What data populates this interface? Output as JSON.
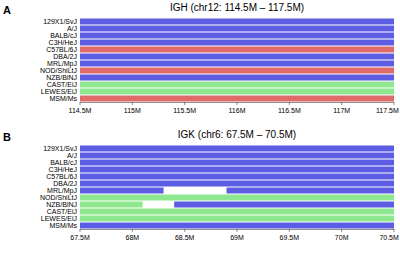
{
  "chart_data": [
    {
      "type": "range",
      "orientation": "horizontal",
      "label": "A",
      "title": "IGH (chr12: 114.5M – 117.5M)",
      "categories": [
        "129X1/SvJ",
        "A/J",
        "BALB/cJ",
        "C3H/HeJ",
        "C57BL/6J",
        "DBA/2J",
        "MRL/MpJ",
        "NOD/ShiLtJ",
        "NZB/BlNJ",
        "CAST/EiJ",
        "LEWES/EiJ",
        "MSM/Ms"
      ],
      "segments": [
        [
          {
            "start": 114.5,
            "end": 117.5,
            "color": "#5d5de3"
          }
        ],
        [
          {
            "start": 114.5,
            "end": 117.5,
            "color": "#5d5de3"
          }
        ],
        [
          {
            "start": 114.5,
            "end": 117.5,
            "color": "#5d5de3"
          }
        ],
        [
          {
            "start": 114.5,
            "end": 117.5,
            "color": "#5d5de3"
          }
        ],
        [
          {
            "start": 114.5,
            "end": 117.5,
            "color": "#e06b6b"
          }
        ],
        [
          {
            "start": 114.5,
            "end": 117.5,
            "color": "#5d5de3"
          }
        ],
        [
          {
            "start": 114.5,
            "end": 117.5,
            "color": "#5d5de3"
          }
        ],
        [
          {
            "start": 114.5,
            "end": 117.5,
            "color": "#e06b6b"
          }
        ],
        [
          {
            "start": 114.5,
            "end": 117.5,
            "color": "#5d5de3"
          }
        ],
        [
          {
            "start": 114.5,
            "end": 117.5,
            "color": "#8fe88f"
          }
        ],
        [
          {
            "start": 114.5,
            "end": 117.5,
            "color": "#8fe88f"
          }
        ],
        [
          {
            "start": 114.5,
            "end": 117.5,
            "color": "#e06b6b"
          }
        ]
      ],
      "xlim": [
        114.5,
        117.5
      ],
      "xticks": [
        {
          "value": 114.5,
          "label": "114.5M"
        },
        {
          "value": 115,
          "label": "115M"
        },
        {
          "value": 115.5,
          "label": "115.5M"
        },
        {
          "value": 116,
          "label": "116M"
        },
        {
          "value": 116.5,
          "label": "116.5M"
        },
        {
          "value": 117,
          "label": "117M"
        },
        {
          "value": 117.5,
          "label": "117.5M"
        }
      ]
    },
    {
      "type": "range",
      "orientation": "horizontal",
      "label": "B",
      "title": "IGK (chr6: 67.5M – 70.5M)",
      "categories": [
        "129X1/SvJ",
        "A/J",
        "BALB/cJ",
        "C3H/HeJ",
        "C57BL/6J",
        "DBA/2J",
        "MRL/MpJ",
        "NOD/ShiLtJ",
        "NZB/BlNJ",
        "CAST/EiJ",
        "LEWES/EiJ",
        "MSM/Ms"
      ],
      "segments": [
        [
          {
            "start": 67.5,
            "end": 70.5,
            "color": "#5d5de3"
          }
        ],
        [
          {
            "start": 67.5,
            "end": 70.5,
            "color": "#5d5de3"
          }
        ],
        [
          {
            "start": 67.5,
            "end": 70.5,
            "color": "#5d5de3"
          }
        ],
        [
          {
            "start": 67.5,
            "end": 70.5,
            "color": "#5d5de3"
          }
        ],
        [
          {
            "start": 67.5,
            "end": 70.5,
            "color": "#5d5de3"
          }
        ],
        [
          {
            "start": 67.5,
            "end": 70.5,
            "color": "#5d5de3"
          }
        ],
        [
          {
            "start": 67.5,
            "end": 68.3,
            "color": "#5d5de3"
          },
          {
            "start": 68.3,
            "end": 68.9,
            "color": "#ffffff"
          },
          {
            "start": 68.9,
            "end": 70.5,
            "color": "#5d5de3"
          }
        ],
        [
          {
            "start": 67.5,
            "end": 70.5,
            "color": "#8fe88f"
          }
        ],
        [
          {
            "start": 67.5,
            "end": 68.1,
            "color": "#8fe88f"
          },
          {
            "start": 68.1,
            "end": 68.4,
            "color": "#ffffff"
          },
          {
            "start": 68.4,
            "end": 70.5,
            "color": "#5d5de3"
          }
        ],
        [
          {
            "start": 67.5,
            "end": 70.5,
            "color": "#8fe88f"
          }
        ],
        [
          {
            "start": 67.5,
            "end": 70.5,
            "color": "#8fe88f"
          }
        ],
        [
          {
            "start": 67.5,
            "end": 70.5,
            "color": "#5d5de3"
          }
        ]
      ],
      "xlim": [
        67.5,
        70.5
      ],
      "xticks": [
        {
          "value": 67.5,
          "label": "67.5M"
        },
        {
          "value": 68,
          "label": "68M"
        },
        {
          "value": 68.5,
          "label": "68.5M"
        },
        {
          "value": 69,
          "label": "69M"
        },
        {
          "value": 69.5,
          "label": "69.5M"
        },
        {
          "value": 70,
          "label": "70M"
        },
        {
          "value": 70.5,
          "label": "70.5M"
        }
      ]
    }
  ]
}
